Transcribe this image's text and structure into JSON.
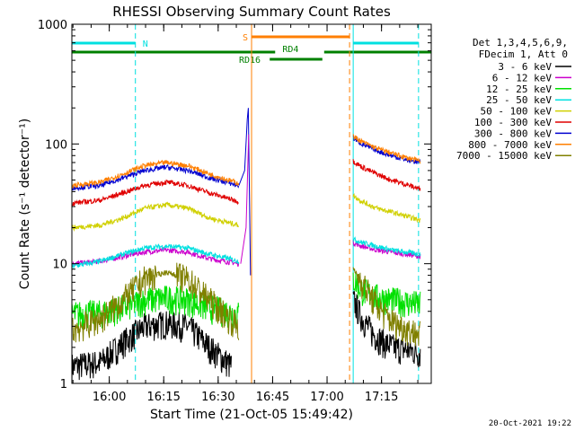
{
  "chart_data": {
    "type": "line",
    "title": "RHESSI Observing Summary Count Rates",
    "xlabel": "Start Time (21-Oct-05 15:49:42)",
    "ylabel": "Count Rate (s⁻¹ detector⁻¹)",
    "y_scale": "log",
    "ylim": [
      1,
      1000
    ],
    "xlim_minutes": [
      0,
      99
    ],
    "x_ticks": [
      {
        "t": 10.3,
        "label": "16:00"
      },
      {
        "t": 25.3,
        "label": "16:15"
      },
      {
        "t": 40.3,
        "label": "16:30"
      },
      {
        "t": 55.3,
        "label": "16:45"
      },
      {
        "t": 70.3,
        "label": "17:00"
      },
      {
        "t": 85.3,
        "label": "17:15"
      }
    ],
    "y_ticks": [
      {
        "v": 1,
        "label": "1"
      },
      {
        "v": 10,
        "label": "10"
      },
      {
        "v": 100,
        "label": "100"
      },
      {
        "v": 1000,
        "label": "1000"
      }
    ],
    "legend_header": [
      "Det 1,3,4,5,6,9,",
      "FDecim 1, Att 0"
    ],
    "legend_placement": "right",
    "series": [
      {
        "name": "3 - 6 keV",
        "color": "#000000",
        "pre": {
          "t": [
            0,
            8,
            14,
            20,
            26,
            32,
            38,
            44
          ],
          "v": [
            1.4,
            1.5,
            2.2,
            3.0,
            3.2,
            3.0,
            2.0,
            1.4
          ]
        },
        "post": {
          "t": [
            77.5,
            80,
            83,
            86,
            89,
            93,
            96
          ],
          "v": [
            5.0,
            3.5,
            2.6,
            2.2,
            2.0,
            1.9,
            1.8
          ]
        }
      },
      {
        "name": "6 - 12 keV",
        "color": "#cc00cc",
        "pre": {
          "t": [
            0,
            8,
            14,
            20,
            26,
            32,
            38,
            46
          ],
          "v": [
            10,
            10.5,
            11.5,
            12.5,
            13,
            12.5,
            11,
            10
          ]
        },
        "post": {
          "t": [
            77.5,
            80,
            84,
            88,
            92,
            96
          ],
          "v": [
            15,
            14,
            13,
            12.5,
            12,
            11.5
          ]
        }
      },
      {
        "name": "12 - 25 keV",
        "color": "#00e000",
        "pre": {
          "t": [
            0,
            8,
            14,
            20,
            26,
            32,
            38,
            46
          ],
          "v": [
            3.8,
            3.9,
            4.3,
            5.0,
            5.2,
            5.0,
            4.3,
            3.8
          ]
        },
        "post": {
          "t": [
            77.5,
            80,
            84,
            88,
            92,
            96
          ],
          "v": [
            7.5,
            6.0,
            5.3,
            5.0,
            4.8,
            4.6
          ]
        }
      },
      {
        "name": "25 - 50 keV",
        "color": "#00e0e0",
        "pre": {
          "t": [
            0,
            8,
            14,
            20,
            26,
            32,
            38,
            46
          ],
          "v": [
            9.5,
            10.5,
            12.0,
            13.5,
            14.0,
            13.5,
            12.0,
            10.5
          ]
        },
        "post": {
          "t": [
            77.5,
            80,
            84,
            88,
            92,
            96
          ],
          "v": [
            16,
            15,
            14,
            13,
            12.5,
            12
          ]
        }
      },
      {
        "name": "50 - 100 keV",
        "color": "#d0d000",
        "pre": {
          "t": [
            0,
            8,
            14,
            20,
            26,
            32,
            38,
            46
          ],
          "v": [
            20,
            21,
            24,
            29,
            31,
            29,
            24,
            21
          ]
        },
        "post": {
          "t": [
            77.5,
            80,
            84,
            88,
            92,
            96
          ],
          "v": [
            37,
            33,
            29,
            27,
            25,
            23
          ]
        }
      },
      {
        "name": "100 - 300 keV",
        "color": "#e00000",
        "pre": {
          "t": [
            0,
            8,
            14,
            20,
            26,
            32,
            38,
            46
          ],
          "v": [
            32,
            34,
            39,
            45,
            48,
            45,
            39,
            33
          ]
        },
        "post": {
          "t": [
            77.5,
            80,
            84,
            88,
            92,
            96
          ],
          "v": [
            72,
            64,
            56,
            50,
            46,
            42
          ]
        }
      },
      {
        "name": "300 - 800 keV",
        "color": "#0000d0",
        "pre": {
          "t": [
            0,
            8,
            14,
            20,
            26,
            32,
            38,
            46
          ],
          "v": [
            43,
            45,
            52,
            60,
            64,
            60,
            52,
            45
          ]
        },
        "post": {
          "t": [
            77.5,
            80,
            84,
            88,
            92,
            96
          ],
          "v": [
            112,
            100,
            88,
            80,
            74,
            70
          ]
        }
      },
      {
        "name": "800 - 7000 keV",
        "color": "#ff7f00",
        "pre": {
          "t": [
            0,
            8,
            14,
            20,
            26,
            32,
            38,
            46
          ],
          "v": [
            45,
            48,
            56,
            66,
            70,
            66,
            56,
            47
          ]
        },
        "post": {
          "t": [
            77.5,
            80,
            84,
            88,
            92,
            96
          ],
          "v": [
            116,
            104,
            92,
            84,
            77,
            72
          ]
        }
      },
      {
        "name": "7000 - 15000 keV",
        "color": "#808000",
        "pre": {
          "t": [
            0,
            8,
            14,
            20,
            26,
            32,
            38,
            46
          ],
          "v": [
            2.8,
            3.5,
            5.0,
            7.5,
            8.5,
            7.5,
            5.0,
            3.0
          ]
        },
        "post": {
          "t": [
            77.5,
            80,
            83,
            86,
            89,
            93,
            96
          ],
          "v": [
            9.0,
            7.0,
            5.0,
            3.8,
            3.2,
            2.8,
            2.6
          ]
        }
      }
    ],
    "vertical_lines": [
      {
        "t": 0,
        "color": "#00e0e0",
        "dashed": false
      },
      {
        "t": 17.5,
        "color": "#00e0e0",
        "dashed": true
      },
      {
        "t": 49.5,
        "color": "#ff7f00",
        "dashed": false
      },
      {
        "t": 76.5,
        "color": "#ff7f00",
        "dashed": true
      },
      {
        "t": 77.5,
        "color": "#00e0e0",
        "dashed": false
      },
      {
        "t": 95.5,
        "color": "#00e0e0",
        "dashed": true
      }
    ],
    "bars": [
      {
        "label": "N",
        "color": "#00e0e0",
        "row": 1,
        "segments": [
          [
            0,
            17.5
          ],
          [
            77.5,
            95.5
          ]
        ]
      },
      {
        "label": "S",
        "color": "#ff7f00",
        "row": 0,
        "segments": [
          [
            49.5,
            76.5
          ]
        ]
      },
      {
        "label": "RD4",
        "color": "#008000",
        "row": 2,
        "segments": [
          [
            0,
            56
          ],
          [
            69.5,
            99
          ]
        ],
        "label_t": 58
      },
      {
        "label": "RD16",
        "color": "#008000",
        "row": 3,
        "segments": [
          [
            54.5,
            69
          ]
        ],
        "label_t": 49
      }
    ],
    "footer_date": "20-Oct-2021 19:22"
  }
}
